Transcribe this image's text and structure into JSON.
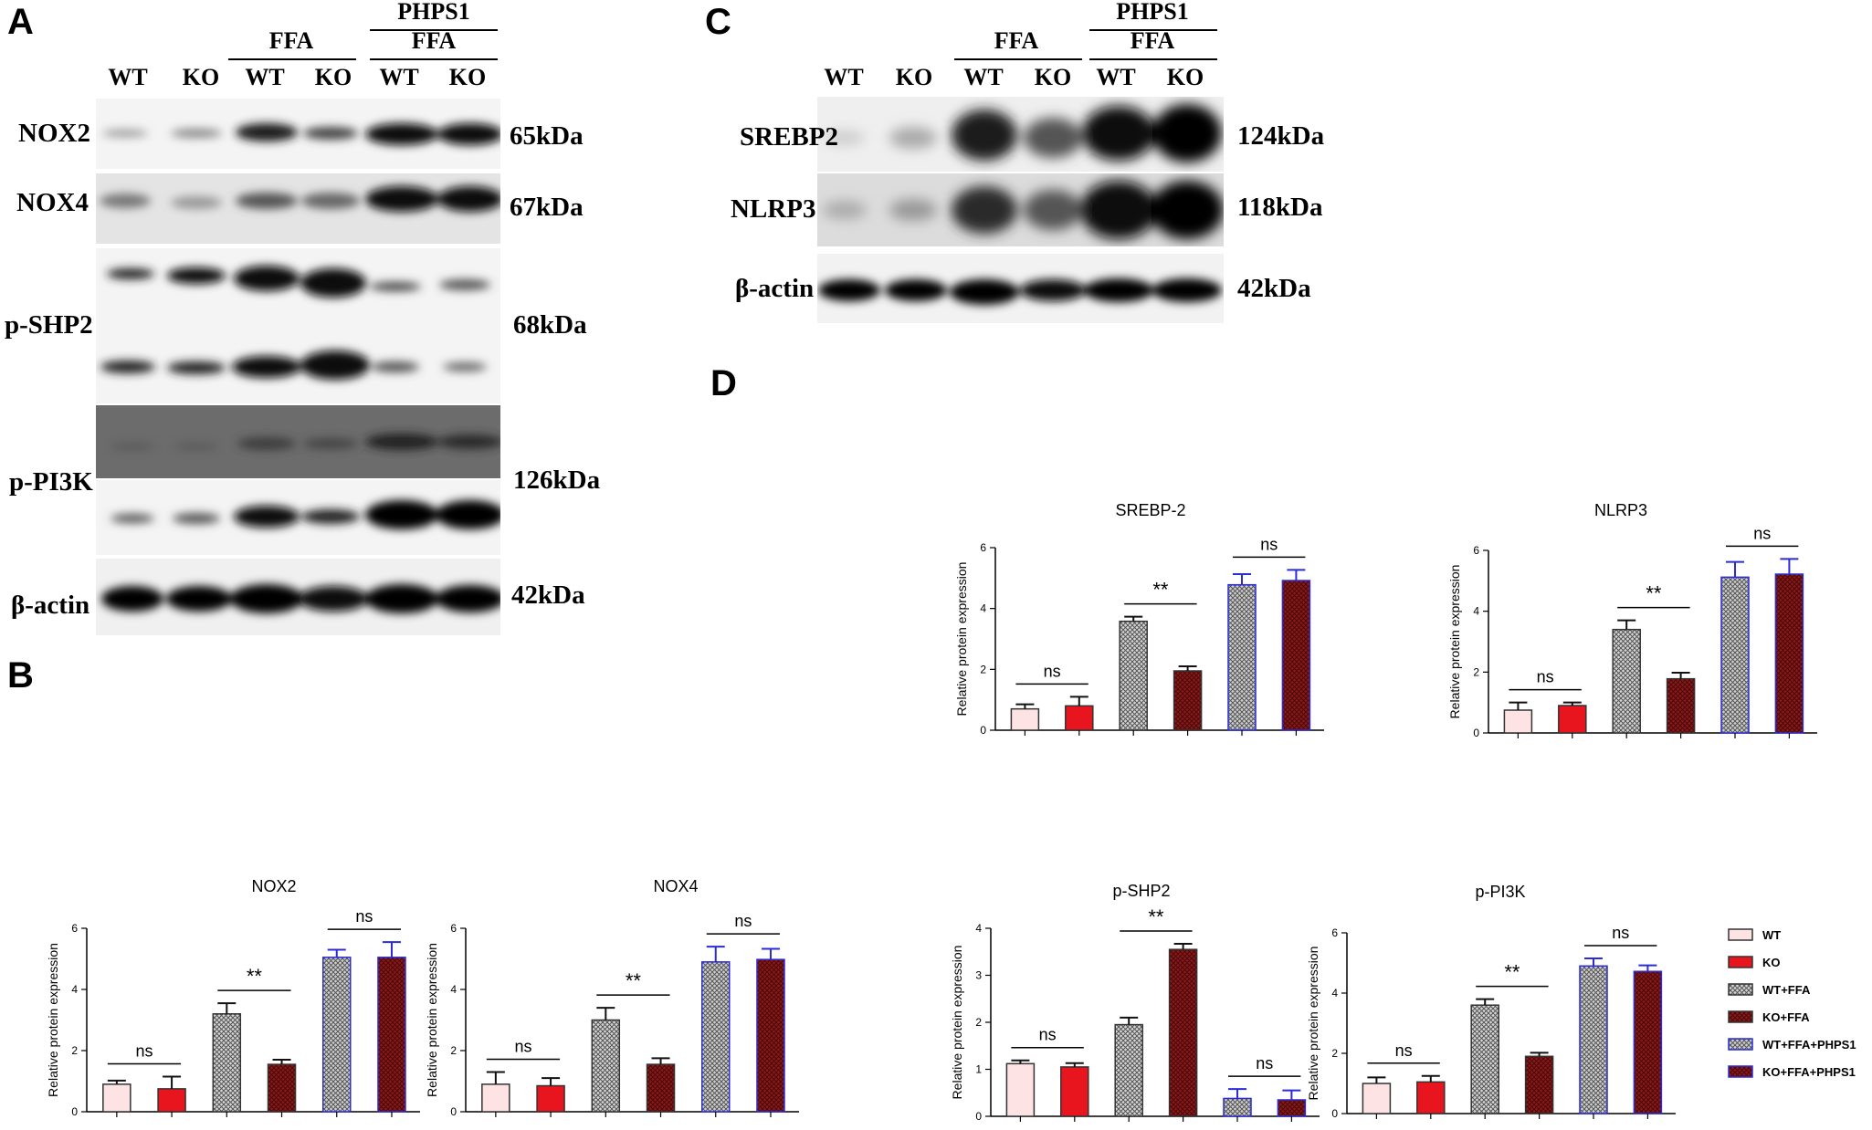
{
  "panels": {
    "A": "A",
    "B": "B",
    "C": "C",
    "D": "D"
  },
  "panel_a": {
    "lanes": [
      "WT",
      "KO",
      "WT",
      "KO",
      "WT",
      "KO"
    ],
    "ffa_label": "FFA",
    "phps1_label": "PHPS1",
    "phps1_ffa_label": "FFA",
    "rows": [
      {
        "label": "NOX2",
        "kda": "65kDa"
      },
      {
        "label": "NOX4",
        "kda": "67kDa"
      },
      {
        "label": "p-SHP2",
        "kda": "68kDa"
      },
      {
        "label": "p-PI3K",
        "kda": "126kDa"
      },
      {
        "label": "β-actin",
        "kda": "42kDa"
      }
    ]
  },
  "panel_c": {
    "lanes": [
      "WT",
      "KO",
      "WT",
      "KO",
      "WT",
      "KO"
    ],
    "ffa_label": "FFA",
    "phps1_label": "PHPS1",
    "phps1_ffa_label": "FFA",
    "rows": [
      {
        "label": "SREBP2",
        "kda": "124kDa"
      },
      {
        "label": "NLRP3",
        "kda": "118kDa"
      },
      {
        "label": "β-actin",
        "kda": "42kDa"
      }
    ]
  },
  "legend": {
    "entries": [
      "WT",
      "KO",
      "WT+FFA",
      "KO+FFA",
      "WT+FFA+PHPS1",
      "KO+FFA+PHPS1"
    ],
    "colors": [
      "#fde3e3",
      "#e8141e",
      "#b0b0b0",
      "#8a1a1a",
      "#7c7cdc",
      "#8a1a1a"
    ]
  },
  "chart_data": [
    {
      "type": "bar",
      "title": "NOX2",
      "ylabel": "Relative protein expression",
      "ylim": [
        0,
        6
      ],
      "yticks": [
        "0",
        "2",
        "4",
        "6"
      ],
      "categories": [
        "WT",
        "KO",
        "WT+FFA",
        "KO+FFA",
        "WT+FFA+PHPS1",
        "KO+FFA+PHPS1"
      ],
      "values": [
        0.9,
        0.75,
        3.2,
        1.55,
        5.05,
        5.05
      ],
      "errors": [
        0.12,
        0.4,
        0.35,
        0.15,
        0.25,
        0.5
      ],
      "annotations": [
        {
          "text": "ns",
          "pair": [
            0,
            1
          ]
        },
        {
          "text": "**",
          "pair": [
            2,
            3
          ]
        },
        {
          "text": "ns",
          "pair": [
            4,
            5
          ]
        }
      ]
    },
    {
      "type": "bar",
      "title": "NOX4",
      "ylabel": "Relative protein expression",
      "ylim": [
        0,
        6
      ],
      "yticks": [
        "0",
        "2",
        "4",
        "6"
      ],
      "categories": [
        "WT",
        "KO",
        "WT+FFA",
        "KO+FFA",
        "WT+FFA+PHPS1",
        "KO+FFA+PHPS1"
      ],
      "values": [
        0.9,
        0.85,
        3.0,
        1.55,
        4.9,
        4.98
      ],
      "errors": [
        0.4,
        0.25,
        0.4,
        0.2,
        0.5,
        0.35
      ],
      "annotations": [
        {
          "text": "ns",
          "pair": [
            0,
            1
          ]
        },
        {
          "text": "**",
          "pair": [
            2,
            3
          ]
        },
        {
          "text": "ns",
          "pair": [
            4,
            5
          ]
        }
      ]
    },
    {
      "type": "bar",
      "title": "p-SHP2",
      "ylabel": "Relative protein expression",
      "ylim": [
        0,
        4
      ],
      "yticks": [
        "0",
        "1",
        "2",
        "3",
        "4"
      ],
      "categories": [
        "WT",
        "KO",
        "WT+FFA",
        "KO+FFA",
        "WT+FFA+PHPS1",
        "KO+FFA+PHPS1"
      ],
      "values": [
        1.12,
        1.05,
        1.95,
        3.55,
        0.38,
        0.35
      ],
      "errors": [
        0.07,
        0.08,
        0.15,
        0.12,
        0.2,
        0.2
      ],
      "annotations": [
        {
          "text": "ns",
          "pair": [
            0,
            1
          ]
        },
        {
          "text": "**",
          "pair": [
            2,
            3
          ]
        },
        {
          "text": "ns",
          "pair": [
            4,
            5
          ]
        }
      ]
    },
    {
      "type": "bar",
      "title": "p-PI3K",
      "ylabel": "Relative protein expression",
      "ylim": [
        0,
        6
      ],
      "yticks": [
        "0",
        "2",
        "4",
        "6"
      ],
      "categories": [
        "WT",
        "KO",
        "WT+FFA",
        "KO+FFA",
        "WT+FFA+PHPS1",
        "KO+FFA+PHPS1"
      ],
      "values": [
        1.0,
        1.05,
        3.6,
        1.9,
        4.9,
        4.72
      ],
      "errors": [
        0.2,
        0.2,
        0.2,
        0.12,
        0.25,
        0.2
      ],
      "annotations": [
        {
          "text": "ns",
          "pair": [
            0,
            1
          ]
        },
        {
          "text": "**",
          "pair": [
            2,
            3
          ]
        },
        {
          "text": "ns",
          "pair": [
            4,
            5
          ]
        }
      ]
    },
    {
      "type": "bar",
      "title": "SREBP-2",
      "ylabel": "Relative protein expression",
      "ylim": [
        0,
        6
      ],
      "yticks": [
        "0",
        "2",
        "4",
        "6"
      ],
      "categories": [
        "WT",
        "KO",
        "WT+FFA",
        "KO+FFA",
        "WT+FFA+PHPS1",
        "KO+FFA+PHPS1"
      ],
      "values": [
        0.7,
        0.8,
        3.58,
        1.95,
        4.78,
        4.92
      ],
      "errors": [
        0.15,
        0.3,
        0.15,
        0.15,
        0.35,
        0.35
      ],
      "annotations": [
        {
          "text": "ns",
          "pair": [
            0,
            1
          ]
        },
        {
          "text": "**",
          "pair": [
            2,
            3
          ]
        },
        {
          "text": "ns",
          "pair": [
            4,
            5
          ]
        }
      ]
    },
    {
      "type": "bar",
      "title": "NLRP3",
      "ylabel": "Relative protein expression",
      "ylim": [
        0,
        6
      ],
      "yticks": [
        "0",
        "2",
        "4",
        "6"
      ],
      "categories": [
        "WT",
        "KO",
        "WT+FFA",
        "KO+FFA",
        "WT+FFA+PHPS1",
        "KO+FFA+PHPS1"
      ],
      "values": [
        0.75,
        0.9,
        3.4,
        1.78,
        5.12,
        5.22
      ],
      "errors": [
        0.25,
        0.1,
        0.3,
        0.2,
        0.5,
        0.5
      ],
      "annotations": [
        {
          "text": "ns",
          "pair": [
            0,
            1
          ]
        },
        {
          "text": "**",
          "pair": [
            2,
            3
          ]
        },
        {
          "text": "ns",
          "pair": [
            4,
            5
          ]
        }
      ]
    }
  ]
}
